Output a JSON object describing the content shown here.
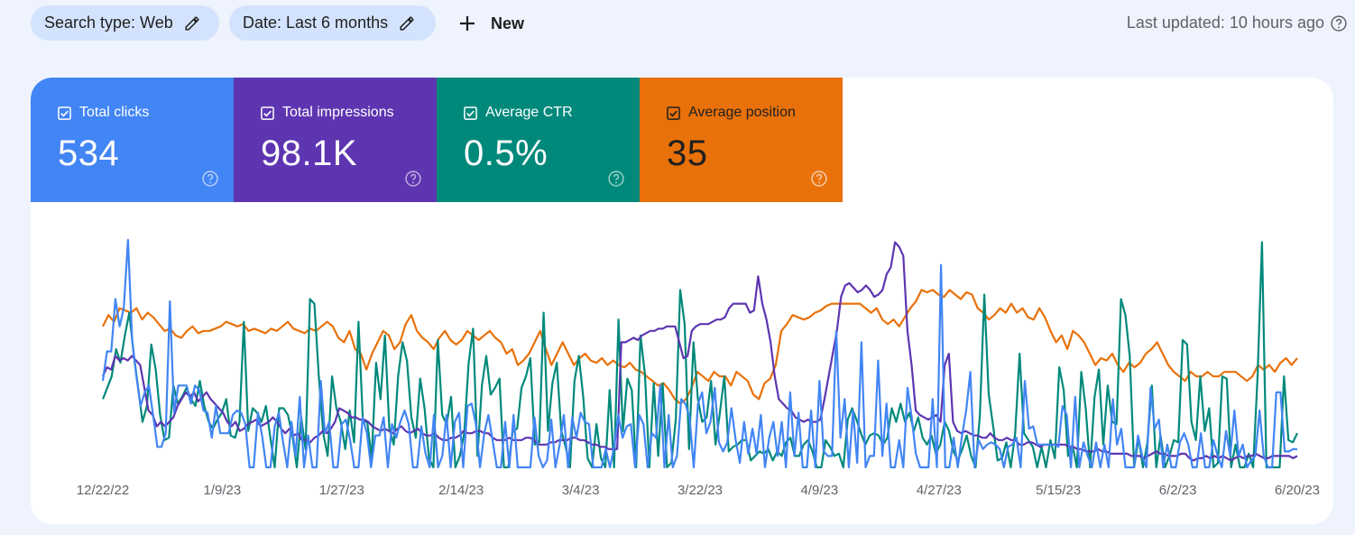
{
  "filters": {
    "search_type": "Search type: Web",
    "date": "Date: Last 6 months",
    "new_label": "New"
  },
  "last_updated": "Last updated: 10 hours ago",
  "metrics": [
    {
      "label": "Total clicks",
      "value": "534",
      "color": "#4285f4"
    },
    {
      "label": "Total impressions",
      "value": "98.1K",
      "color": "#5e35b1"
    },
    {
      "label": "Average CTR",
      "value": "0.5%",
      "color": "#00897b"
    },
    {
      "label": "Average position",
      "value": "35",
      "color": "#e8710a"
    }
  ],
  "chart_data": {
    "type": "line",
    "x_start": "12/22/22",
    "x_ticks": [
      "12/22/22",
      "1/9/23",
      "1/27/23",
      "2/14/23",
      "3/4/23",
      "3/22/23",
      "4/9/23",
      "4/27/23",
      "5/15/23",
      "6/2/23",
      "6/20/23"
    ],
    "y_axis_visible": false,
    "grid": false,
    "series": [
      {
        "name": "Average position",
        "color": "#e8710a",
        "values": [
          0.62,
          0.67,
          0.64,
          0.7,
          0.69,
          0.68,
          0.7,
          0.65,
          0.68,
          0.66,
          0.63,
          0.6,
          0.61,
          0.58,
          0.57,
          0.6,
          0.62,
          0.59,
          0.6,
          0.6,
          0.61,
          0.62,
          0.64,
          0.63,
          0.62,
          0.63,
          0.6,
          0.61,
          0.6,
          0.59,
          0.61,
          0.6,
          0.62,
          0.64,
          0.61,
          0.6,
          0.59,
          0.61,
          0.6,
          0.62,
          0.64,
          0.62,
          0.57,
          0.55,
          0.6,
          0.52,
          0.5,
          0.43,
          0.5,
          0.55,
          0.6,
          0.58,
          0.52,
          0.55,
          0.63,
          0.67,
          0.6,
          0.57,
          0.55,
          0.52,
          0.57,
          0.6,
          0.56,
          0.54,
          0.56,
          0.6,
          0.58,
          0.56,
          0.58,
          0.6,
          0.57,
          0.55,
          0.5,
          0.52,
          0.45,
          0.47,
          0.5,
          0.55,
          0.6,
          0.52,
          0.45,
          0.5,
          0.55,
          0.5,
          0.45,
          0.48,
          0.5,
          0.47,
          0.46,
          0.48,
          0.45,
          0.47,
          0.45,
          0.44,
          0.46,
          0.43,
          0.42,
          0.4,
          0.38,
          0.36,
          0.37,
          0.34,
          0.3,
          0.28,
          0.3,
          0.35,
          0.42,
          0.4,
          0.38,
          0.42,
          0.4,
          0.4,
          0.36,
          0.42,
          0.4,
          0.38,
          0.32,
          0.3,
          0.37,
          0.39,
          0.45,
          0.6,
          0.63,
          0.67,
          0.66,
          0.65,
          0.66,
          0.68,
          0.69,
          0.71,
          0.72,
          0.72,
          0.72,
          0.72,
          0.72,
          0.72,
          0.7,
          0.68,
          0.7,
          0.65,
          0.63,
          0.65,
          0.62,
          0.66,
          0.7,
          0.73,
          0.78,
          0.77,
          0.78,
          0.76,
          0.75,
          0.78,
          0.76,
          0.74,
          0.77,
          0.76,
          0.7,
          0.68,
          0.65,
          0.67,
          0.7,
          0.68,
          0.72,
          0.68,
          0.7,
          0.66,
          0.65,
          0.7,
          0.66,
          0.6,
          0.55,
          0.58,
          0.52,
          0.6,
          0.58,
          0.55,
          0.5,
          0.45,
          0.48,
          0.47,
          0.5,
          0.45,
          0.42,
          0.46,
          0.44,
          0.46,
          0.5,
          0.52,
          0.55,
          0.5,
          0.45,
          0.42,
          0.4,
          0.38,
          0.42,
          0.4,
          0.4,
          0.42,
          0.4,
          0.4,
          0.42,
          0.42,
          0.42,
          0.4,
          0.38,
          0.4,
          0.45,
          0.43,
          0.45,
          0.42,
          0.46,
          0.48,
          0.45,
          0.48
        ]
      },
      {
        "name": "Average CTR",
        "color": "#00897b",
        "values": [
          0.3,
          0.35,
          0.4,
          0.52,
          0.46,
          0.58,
          0.68,
          0.5,
          0.35,
          0.2,
          0.27,
          0.54,
          0.43,
          0.23,
          0.12,
          0.13,
          0.36,
          0.28,
          0.31,
          0.35,
          0.3,
          0.27,
          0.38,
          0.27,
          0.2,
          0.17,
          0.21,
          0.24,
          0.3,
          0.14,
          0.13,
          0.2,
          0.64,
          0.16,
          0.26,
          0.24,
          0.2,
          0.27,
          0.13,
          0.0,
          0.26,
          0.26,
          0.23,
          0.14,
          0.0,
          0.22,
          0.08,
          0.74,
          0.72,
          0.4,
          0.15,
          0.05,
          0.4,
          0.26,
          0.2,
          0.08,
          0.25,
          0.11,
          0.64,
          0.2,
          0.2,
          0.04,
          0.46,
          0.3,
          0.58,
          0.17,
          0.1,
          0.4,
          0.55,
          0.47,
          0.22,
          0.13,
          0.39,
          0.26,
          0.04,
          0.0,
          0.56,
          0.23,
          0.19,
          0.31,
          0.0,
          0.05,
          0.15,
          0.46,
          0.61,
          0.05,
          0.36,
          0.49,
          0.32,
          0.35,
          0.39,
          0.0,
          0.0,
          0.16,
          0.17,
          0.35,
          0.4,
          0.48,
          0.1,
          0.11,
          0.68,
          0.16,
          0.37,
          0.46,
          0.16,
          0.09,
          0.0,
          0.38,
          0.49,
          0.31,
          0.04,
          0.0,
          0.19,
          0.04,
          0.0,
          0.34,
          0.0,
          0.65,
          0.16,
          0.39,
          0.34,
          0.0,
          0.58,
          0.41,
          0.0,
          0.37,
          0.05,
          0.37,
          0.0,
          0.02,
          0.21,
          0.78,
          0.63,
          0.08,
          0.55,
          0.3,
          0.2,
          0.22,
          0.38,
          0.1,
          0.24,
          0.4,
          0.07,
          0.09,
          0.1,
          0.12,
          0.12,
          0.03,
          0.05,
          0.07,
          0.06,
          0.08,
          0.03,
          0.07,
          0.05,
          0.11,
          0.13,
          0.05,
          0.05,
          0.1,
          0.12,
          0.07,
          0.0,
          0.0,
          0.12,
          0.09,
          0.05,
          0.06,
          0.0,
          0.21,
          0.26,
          0.21,
          0.15,
          0.1,
          0.14,
          0.15,
          0.14,
          0.1,
          0.13,
          0.26,
          0.2,
          0.28,
          0.2,
          0.24,
          0.16,
          0.22,
          0.13,
          0.1,
          0.14,
          0.06,
          0.1,
          0.2,
          0.16,
          0.07,
          0.03,
          0.08,
          0.14,
          0.05,
          0.0,
          0.23,
          0.76,
          0.32,
          0.18,
          0.03,
          0.04,
          0.11,
          0.0,
          0.15,
          0.5,
          0.15,
          0.12,
          0.09,
          0.0,
          0.09,
          0.0,
          0.12,
          0.04,
          0.44,
          0.34,
          0.05,
          0.1,
          0.0,
          0.42,
          0.26,
          0.0,
          0.31,
          0.43,
          0.1,
          0.36,
          0.2,
          0.19,
          0.74,
          0.67,
          0.49,
          0.0,
          0.13,
          0.0,
          0.11,
          0.36,
          0.0,
          0.14,
          0.0,
          0.05,
          0.12,
          0.11,
          0.56,
          0.54,
          0.2,
          0.12,
          0.4,
          0.16,
          0.26,
          0.0,
          0.02,
          0.4,
          0.39,
          0.0,
          0.1,
          0.0,
          0.0,
          0.06,
          0.0,
          0.4,
          0.99,
          0.0,
          0.0,
          0.0,
          0.0,
          0.4,
          0.12,
          0.11,
          0.15
        ]
      },
      {
        "name": "Total impressions",
        "color": "#5e35b1",
        "values": [
          0.4,
          0.44,
          0.43,
          0.49,
          0.47,
          0.48,
          0.47,
          0.49,
          0.47,
          0.45,
          0.35,
          0.25,
          0.23,
          0.18,
          0.2,
          0.18,
          0.2,
          0.22,
          0.27,
          0.3,
          0.33,
          0.31,
          0.33,
          0.29,
          0.31,
          0.33,
          0.3,
          0.28,
          0.26,
          0.24,
          0.2,
          0.18,
          0.2,
          0.16,
          0.17,
          0.19,
          0.2,
          0.21,
          0.18,
          0.19,
          0.2,
          0.22,
          0.2,
          0.17,
          0.15,
          0.17,
          0.14,
          0.15,
          0.12,
          0.12,
          0.11,
          0.13,
          0.14,
          0.16,
          0.15,
          0.17,
          0.2,
          0.26,
          0.25,
          0.24,
          0.22,
          0.22,
          0.21,
          0.21,
          0.2,
          0.18,
          0.17,
          0.16,
          0.17,
          0.16,
          0.15,
          0.17,
          0.18,
          0.16,
          0.15,
          0.16,
          0.17,
          0.15,
          0.14,
          0.14,
          0.15,
          0.13,
          0.12,
          0.12,
          0.13,
          0.13,
          0.14,
          0.16,
          0.15,
          0.15,
          0.16,
          0.16,
          0.15,
          0.15,
          0.13,
          0.12,
          0.12,
          0.12,
          0.13,
          0.12,
          0.12,
          0.12,
          0.13,
          0.13,
          0.12,
          0.1,
          0.1,
          0.1,
          0.11,
          0.11,
          0.12,
          0.12,
          0.12,
          0.13,
          0.13,
          0.12,
          0.12,
          0.11,
          0.1,
          0.1,
          0.09,
          0.09,
          0.08,
          0.08,
          0.08,
          0.55,
          0.55,
          0.56,
          0.57,
          0.56,
          0.58,
          0.59,
          0.6,
          0.6,
          0.61,
          0.61,
          0.62,
          0.62,
          0.62,
          0.55,
          0.48,
          0.49,
          0.6,
          0.62,
          0.63,
          0.63,
          0.63,
          0.64,
          0.65,
          0.65,
          0.66,
          0.7,
          0.72,
          0.72,
          0.72,
          0.72,
          0.68,
          0.69,
          0.84,
          0.72,
          0.65,
          0.55,
          0.4,
          0.3,
          0.28,
          0.26,
          0.25,
          0.22,
          0.21,
          0.2,
          0.21,
          0.2,
          0.2,
          0.21,
          0.3,
          0.4,
          0.5,
          0.6,
          0.75,
          0.8,
          0.81,
          0.79,
          0.77,
          0.78,
          0.8,
          0.78,
          0.75,
          0.76,
          0.78,
          0.85,
          0.88,
          0.99,
          0.97,
          0.93,
          0.6,
          0.45,
          0.25,
          0.23,
          0.22,
          0.21,
          0.22,
          0.23,
          0.2,
          0.45,
          0.5,
          0.2,
          0.16,
          0.15,
          0.16,
          0.15,
          0.14,
          0.14,
          0.13,
          0.13,
          0.15,
          0.13,
          0.12,
          0.12,
          0.13,
          0.12,
          0.12,
          0.1,
          0.1,
          0.11,
          0.11,
          0.1,
          0.09,
          0.1,
          0.1,
          0.1,
          0.1,
          0.1,
          0.1,
          0.09,
          0.09,
          0.08,
          0.08,
          0.07,
          0.07,
          0.07,
          0.08,
          0.07,
          0.07,
          0.06,
          0.06,
          0.06,
          0.06,
          0.06,
          0.05,
          0.05,
          0.05,
          0.04,
          0.05,
          0.06,
          0.07,
          0.06,
          0.06,
          0.05,
          0.05,
          0.05,
          0.06,
          0.06,
          0.04,
          0.03,
          0.04,
          0.04,
          0.05,
          0.04,
          0.05,
          0.04,
          0.05,
          0.04,
          0.03,
          0.04,
          0.05,
          0.04,
          0.05,
          0.05,
          0.06,
          0.05,
          0.04,
          0.04,
          0.05,
          0.05,
          0.05,
          0.05,
          0.05,
          0.04,
          0.05
        ]
      },
      {
        "name": "Total clicks",
        "color": "#4285f4",
        "values": [
          0.38,
          0.51,
          0.51,
          0.74,
          0.62,
          0.7,
          1.0,
          0.56,
          0.4,
          0.27,
          0.33,
          0.36,
          0.23,
          0.09,
          0.09,
          0.15,
          0.73,
          0.24,
          0.36,
          0.36,
          0.36,
          0.28,
          0.36,
          0.34,
          0.25,
          0.24,
          0.13,
          0.27,
          0.15,
          0.15,
          0.15,
          0.23,
          0.25,
          0.24,
          0.19,
          0.0,
          0.0,
          0.24,
          0.14,
          0.0,
          0.0,
          0.18,
          0.24,
          0.11,
          0.0,
          0.2,
          0.05,
          0.31,
          0.0,
          0.14,
          0.0,
          0.0,
          0.38,
          0.15,
          0.2,
          0.0,
          0.0,
          0.19,
          0.21,
          0.12,
          0.0,
          0.0,
          0.22,
          0.15,
          0.0,
          0.14,
          0.14,
          0.22,
          0.0,
          0.19,
          0.13,
          0.2,
          0.25,
          0.19,
          0.0,
          0.0,
          0.18,
          0.06,
          0.0,
          0.23,
          0.0,
          0.05,
          0.23,
          0.0,
          0.2,
          0.24,
          0.0,
          0.27,
          0.28,
          0.19,
          0.0,
          0.15,
          0.23,
          0.12,
          0.0,
          0.0,
          0.2,
          0.0,
          0.23,
          0.0,
          0.0,
          0.0,
          0.0,
          0.22,
          0.05,
          0.0,
          0.03,
          0.21,
          0.0,
          0.1,
          0.23,
          0.0,
          0.22,
          0.13,
          0.24,
          0.2,
          0.19,
          0.0,
          0.0,
          0.0,
          0.08,
          0.0,
          0.09,
          0.23,
          0.13,
          0.18,
          0.19,
          0.0,
          0.23,
          0.19,
          0.0,
          0.15,
          0.13,
          0.36,
          0.0,
          0.23,
          0.0,
          0.05,
          0.3,
          0.28,
          0.22,
          0.0,
          0.28,
          0.33,
          0.15,
          0.2,
          0.35,
          0.11,
          0.07,
          0.11,
          0.26,
          0.12,
          0.02,
          0.2,
          0.06,
          0.17,
          0.06,
          0.23,
          0.0,
          0.13,
          0.2,
          0.05,
          0.2,
          0.0,
          0.33,
          0.05,
          0.24,
          0.0,
          0.0,
          0.25,
          0.0,
          0.38,
          0.07,
          0.05,
          0.05,
          0.6,
          0.13,
          0.3,
          0.0,
          0.25,
          0.02,
          0.55,
          0.0,
          0.05,
          0.05,
          0.47,
          0.05,
          0.28,
          0.0,
          0.0,
          0.12,
          0.0,
          0.35,
          0.22,
          0.06,
          0.0,
          0.0,
          0.0,
          0.3,
          0.0,
          0.89,
          0.0,
          0.0,
          0.13,
          0.0,
          0.14,
          0.25,
          0.42,
          0.0,
          0.12,
          0.08,
          0.1,
          0.11,
          0.1,
          0.08,
          0.0,
          0.09,
          0.1,
          0.13,
          0.0,
          0.38,
          0.17,
          0.18,
          0.1,
          0.1,
          0.1,
          0.1,
          0.1,
          0.09,
          0.27,
          0.23,
          0.0,
          0.31,
          0.0,
          0.11,
          0.05,
          0.0,
          0.11,
          0.0,
          0.1,
          0.0,
          0.3,
          0.1,
          0.17,
          0.0,
          0.0,
          0.0,
          0.14,
          0.05,
          0.0,
          0.35,
          0.17,
          0.21,
          0.0,
          0.1,
          0.0,
          0.0,
          0.11,
          0.15,
          0.1,
          0.0,
          0.0,
          0.15,
          0.0,
          0.0,
          0.12,
          0.05,
          0.0,
          0.16,
          0.05,
          0.25,
          0.05,
          0.1,
          0.0,
          0.03,
          0.05,
          0.25,
          0.05,
          0.0,
          0.0,
          0.33,
          0.33,
          0.07,
          0.07,
          0.08,
          0.08
        ]
      }
    ]
  }
}
